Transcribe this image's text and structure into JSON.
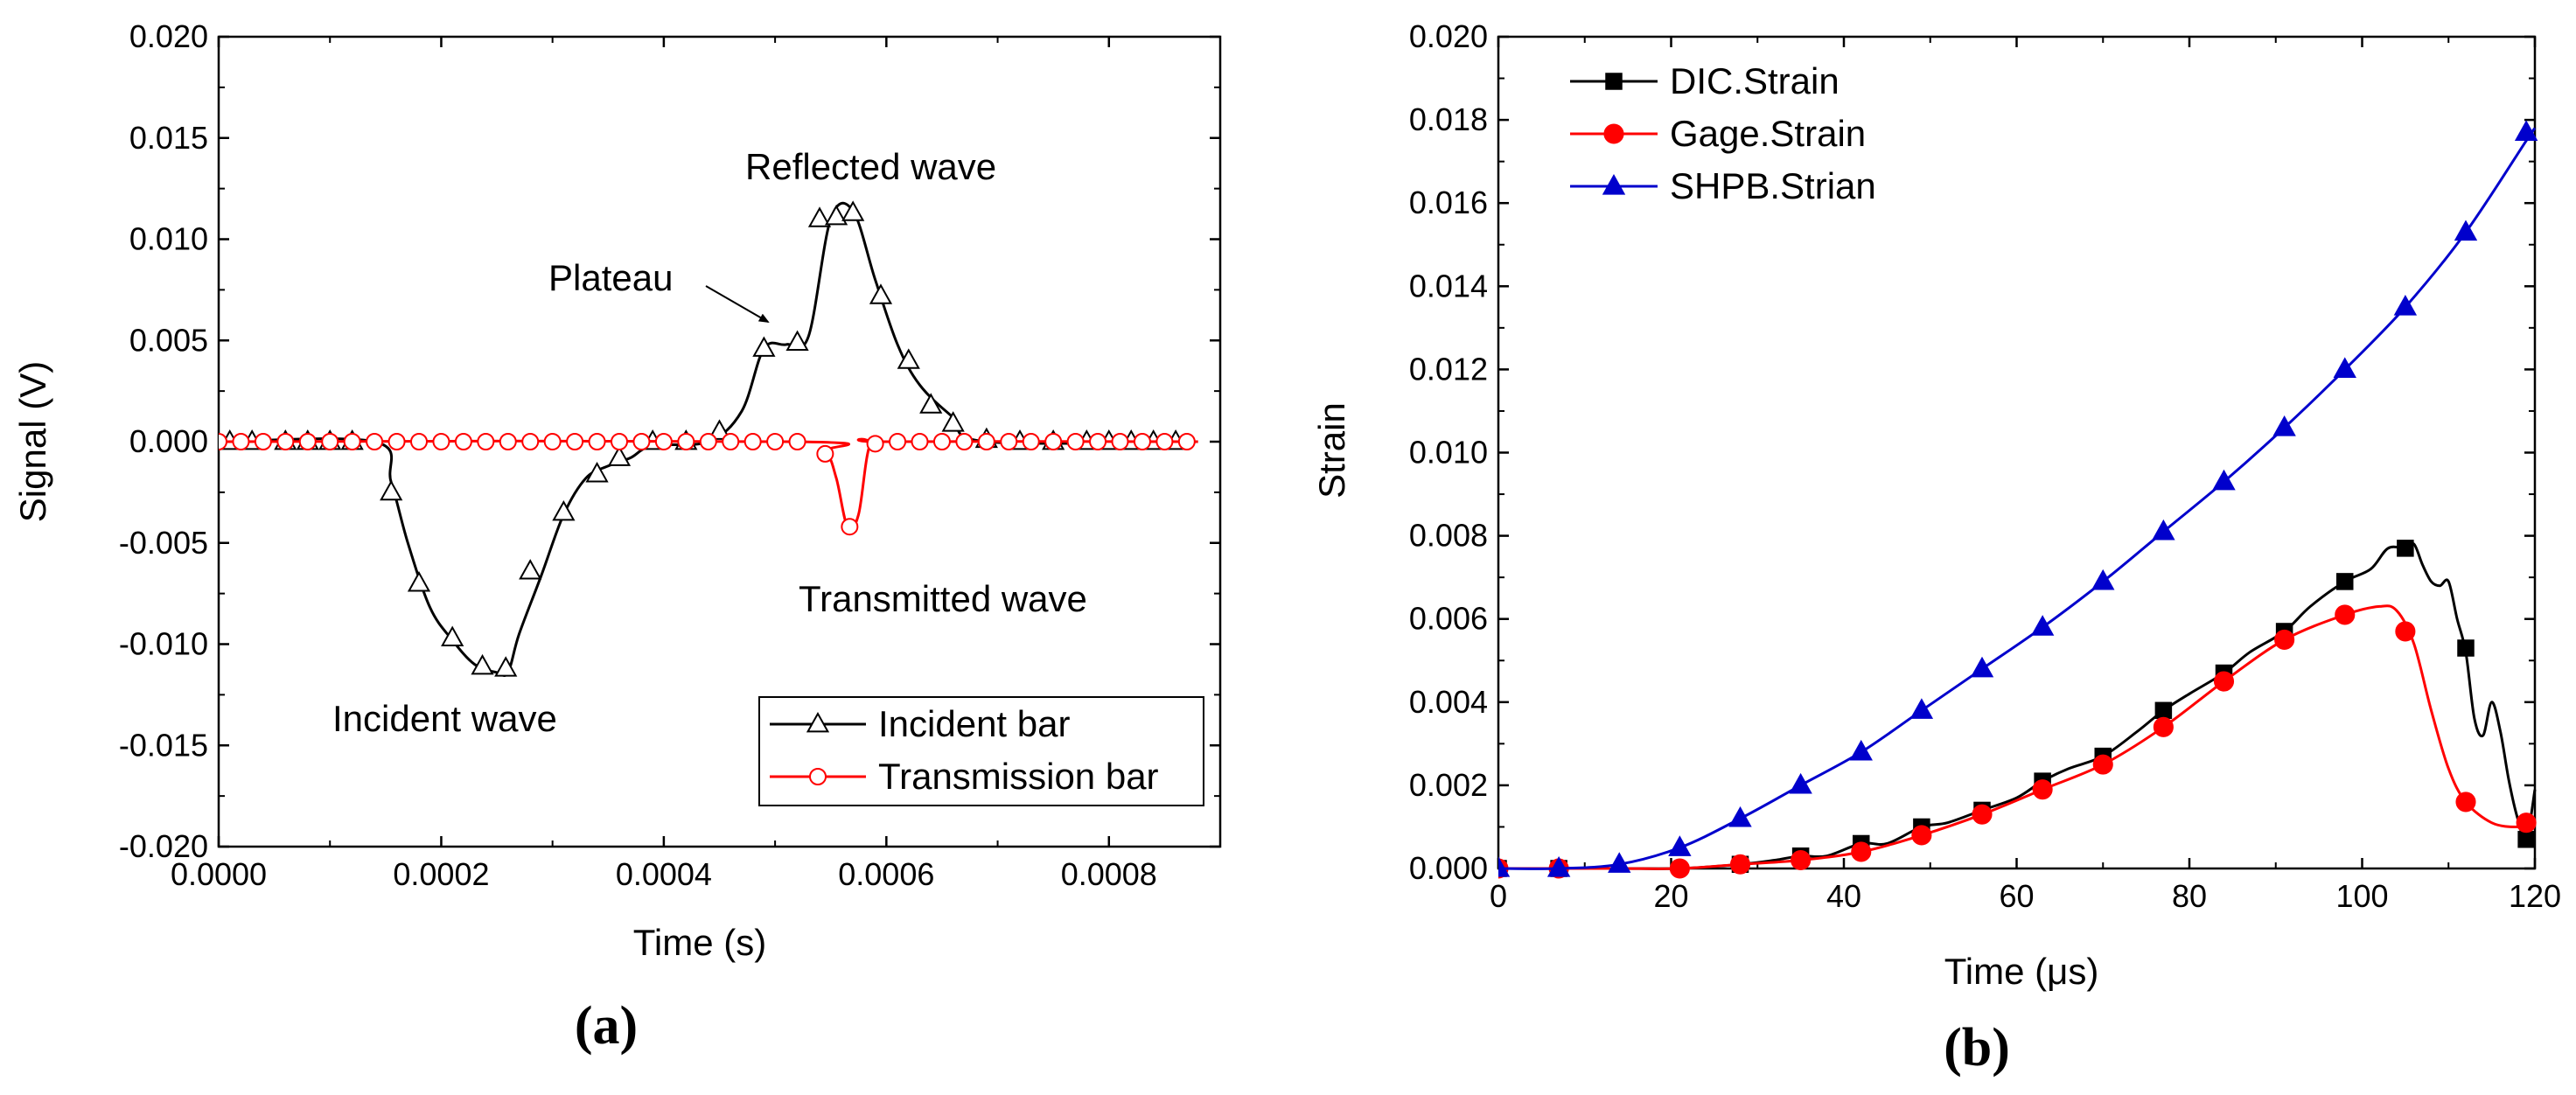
{
  "chart_data": [
    {
      "type": "line",
      "panel_label": "(a)",
      "xlabel": "Time (s)",
      "ylabel": "Signal (V)",
      "xlim": [
        0,
        0.0009
      ],
      "ylim": [
        -0.02,
        0.02
      ],
      "xticks": [
        "0.0000",
        "0.0002",
        "0.0004",
        "0.0006",
        "0.0008"
      ],
      "yticks": [
        "-0.020",
        "-0.015",
        "-0.010",
        "-0.005",
        "0.000",
        "0.005",
        "0.010",
        "0.015",
        "0.020"
      ],
      "grid": false,
      "legend_position": "bottom-right",
      "annotations": {
        "reflected": "Reflected wave",
        "plateau": "Plateau",
        "transmitted": "Transmitted wave",
        "incident": "Incident wave"
      },
      "series": [
        {
          "name": "Incident bar",
          "color": "#000000",
          "marker": "open-triangle",
          "line": [
            [
              0,
              0
            ],
            [
              0.00014,
              0
            ],
            [
              0.000155,
              -0.002
            ],
            [
              0.00017,
              -0.005
            ],
            [
              0.00019,
              -0.0082
            ],
            [
              0.00021,
              -0.0098
            ],
            [
              0.00023,
              -0.011
            ],
            [
              0.00025,
              -0.0114
            ],
            [
              0.00026,
              -0.0114
            ],
            [
              0.00027,
              -0.0095
            ],
            [
              0.00029,
              -0.0066
            ],
            [
              0.00031,
              -0.0036
            ],
            [
              0.00033,
              -0.0018
            ],
            [
              0.00035,
              -0.0012
            ],
            [
              0.00037,
              -0.0008
            ],
            [
              0.00039,
              -0.0002
            ],
            [
              0.00044,
              0
            ],
            [
              0.00047,
              0.0015
            ],
            [
              0.00049,
              0.0046
            ],
            [
              0.00051,
              0.0048
            ],
            [
              0.00053,
              0.0052
            ],
            [
              0.00055,
              0.011
            ],
            [
              0.00057,
              0.0114
            ],
            [
              0.00059,
              0.008
            ],
            [
              0.00061,
              0.0048
            ],
            [
              0.00063,
              0.0028
            ],
            [
              0.00066,
              0.0012
            ],
            [
              0.00069,
              0
            ],
            [
              0.00088,
              0
            ]
          ],
          "markers": [
            [
              1e-05,
              0
            ],
            [
              3e-05,
              0
            ],
            [
              6e-05,
              0
            ],
            [
              8e-05,
              0
            ],
            [
              0.0001,
              0
            ],
            [
              0.00012,
              0
            ],
            [
              0.000155,
              -0.0025
            ],
            [
              0.00018,
              -0.007
            ],
            [
              0.00021,
              -0.0097
            ],
            [
              0.000237,
              -0.0111
            ],
            [
              0.000258,
              -0.0112
            ],
            [
              0.00028,
              -0.0064
            ],
            [
              0.00031,
              -0.0035
            ],
            [
              0.00034,
              -0.0016
            ],
            [
              0.00036,
              -0.0008
            ],
            [
              0.00039,
              0
            ],
            [
              0.00042,
              0
            ],
            [
              0.00045,
              0.0005
            ],
            [
              0.00049,
              0.0046
            ],
            [
              0.00052,
              0.0049
            ],
            [
              0.00054,
              0.011
            ],
            [
              0.000555,
              0.0111
            ],
            [
              0.00057,
              0.0113
            ],
            [
              0.000595,
              0.0072
            ],
            [
              0.00062,
              0.004
            ],
            [
              0.00064,
              0.0018
            ],
            [
              0.00066,
              0.0009
            ],
            [
              0.00069,
              0.0001
            ],
            [
              0.00072,
              0
            ],
            [
              0.00075,
              0
            ],
            [
              0.00078,
              0
            ],
            [
              0.0008,
              0
            ],
            [
              0.00082,
              0
            ],
            [
              0.00084,
              0
            ],
            [
              0.00086,
              0
            ]
          ]
        },
        {
          "name": "Transmission bar",
          "color": "#ff0000",
          "marker": "open-circle",
          "line": [
            [
              0,
              0
            ],
            [
              0.00052,
              0
            ],
            [
              0.000545,
              -0.0005
            ],
            [
              0.000555,
              -0.0018
            ],
            [
              0.000565,
              -0.0042
            ],
            [
              0.000575,
              -0.0036
            ],
            [
              0.000585,
              -0.0002
            ],
            [
              0.0006,
              0
            ],
            [
              0.00088,
              0
            ]
          ],
          "markers": [
            [
              0.0,
              0
            ],
            [
              2e-05,
              0
            ],
            [
              4e-05,
              0
            ],
            [
              6e-05,
              0
            ],
            [
              8e-05,
              0
            ],
            [
              0.0001,
              0
            ],
            [
              0.00012,
              0
            ],
            [
              0.00014,
              0
            ],
            [
              0.00016,
              0
            ],
            [
              0.00018,
              0
            ],
            [
              0.0002,
              0
            ],
            [
              0.00022,
              0
            ],
            [
              0.00024,
              0
            ],
            [
              0.00026,
              0
            ],
            [
              0.00028,
              0
            ],
            [
              0.0003,
              0
            ],
            [
              0.00032,
              0
            ],
            [
              0.00034,
              0
            ],
            [
              0.00036,
              0
            ],
            [
              0.00038,
              0
            ],
            [
              0.0004,
              0
            ],
            [
              0.00042,
              0
            ],
            [
              0.00044,
              0
            ],
            [
              0.00046,
              0
            ],
            [
              0.00048,
              0
            ],
            [
              0.0005,
              0
            ],
            [
              0.00052,
              0
            ],
            [
              0.000545,
              -0.0006
            ],
            [
              0.000567,
              -0.0042
            ],
            [
              0.00059,
              -0.0001
            ],
            [
              0.00061,
              0
            ],
            [
              0.00063,
              0
            ],
            [
              0.00065,
              0
            ],
            [
              0.00067,
              0
            ],
            [
              0.00069,
              0
            ],
            [
              0.00071,
              0
            ],
            [
              0.00073,
              0
            ],
            [
              0.00075,
              0
            ],
            [
              0.00077,
              0
            ],
            [
              0.00079,
              0
            ],
            [
              0.00081,
              0
            ],
            [
              0.00083,
              0
            ],
            [
              0.00085,
              0
            ],
            [
              0.00087,
              0
            ]
          ]
        }
      ]
    },
    {
      "type": "line",
      "panel_label": "(b)",
      "xlabel": "Time (μs)",
      "ylabel": "Strain",
      "xlim": [
        0,
        120
      ],
      "ylim": [
        0,
        0.02
      ],
      "xticks": [
        "0",
        "20",
        "40",
        "60",
        "80",
        "100",
        "120"
      ],
      "yticks": [
        "0.000",
        "0.002",
        "0.004",
        "0.006",
        "0.008",
        "0.010",
        "0.012",
        "0.014",
        "0.016",
        "0.018",
        "0.020"
      ],
      "grid": false,
      "legend_position": "top-left",
      "series": [
        {
          "name": "DIC.Strain",
          "color": "#000000",
          "marker": "filled-square",
          "line": [
            [
              0,
              0
            ],
            [
              7,
              0
            ],
            [
              14,
              0
            ],
            [
              21,
              0
            ],
            [
              28,
              0.0001
            ],
            [
              32,
              0.0002
            ],
            [
              35,
              0.0003
            ],
            [
              38,
              0.0003
            ],
            [
              42,
              0.0006
            ],
            [
              45,
              0.0006
            ],
            [
              49,
              0.001
            ],
            [
              52,
              0.0011
            ],
            [
              56,
              0.0014
            ],
            [
              60,
              0.0017
            ],
            [
              63,
              0.0021
            ],
            [
              66,
              0.0024
            ],
            [
              70,
              0.0027
            ],
            [
              74,
              0.0033
            ],
            [
              77,
              0.0038
            ],
            [
              80,
              0.0042
            ],
            [
              84,
              0.0047
            ],
            [
              87,
              0.0052
            ],
            [
              91,
              0.0057
            ],
            [
              94,
              0.0063
            ],
            [
              98,
              0.0069
            ],
            [
              101,
              0.0072
            ],
            [
              103,
              0.0077
            ],
            [
              105,
              0.0077
            ],
            [
              106,
              0.0078
            ],
            [
              107,
              0.0073
            ],
            [
              108,
              0.0069
            ],
            [
              109,
              0.0068
            ],
            [
              110,
              0.0069
            ],
            [
              111,
              0.006
            ],
            [
              112,
              0.0052
            ],
            [
              113,
              0.0036
            ],
            [
              114,
              0.0032
            ],
            [
              115,
              0.004
            ],
            [
              116,
              0.0033
            ],
            [
              117,
              0.0021
            ],
            [
              118,
              0.0012
            ],
            [
              119,
              0.0007
            ],
            [
              120,
              0.0019
            ]
          ],
          "markers": [
            [
              0,
              0
            ],
            [
              7,
              0
            ],
            [
              28,
              0.0001
            ],
            [
              35,
              0.0003
            ],
            [
              42,
              0.0006
            ],
            [
              49,
              0.001
            ],
            [
              56,
              0.0014
            ],
            [
              63,
              0.0021
            ],
            [
              70,
              0.0027
            ],
            [
              77,
              0.0038
            ],
            [
              84,
              0.0047
            ],
            [
              91,
              0.0057
            ],
            [
              98,
              0.0069
            ],
            [
              105,
              0.0077
            ],
            [
              112,
              0.0053
            ],
            [
              119,
              0.0007
            ]
          ]
        },
        {
          "name": "Gage.Strain",
          "color": "#ff0000",
          "marker": "filled-circle",
          "line": [
            [
              0,
              0
            ],
            [
              7,
              0
            ],
            [
              14,
              0
            ],
            [
              21,
              0
            ],
            [
              28,
              0.0001
            ],
            [
              35,
              0.0002
            ],
            [
              42,
              0.0004
            ],
            [
              49,
              0.0008
            ],
            [
              56,
              0.0013
            ],
            [
              63,
              0.0019
            ],
            [
              70,
              0.0025
            ],
            [
              77,
              0.0034
            ],
            [
              84,
              0.0045
            ],
            [
              91,
              0.0055
            ],
            [
              98,
              0.0061
            ],
            [
              102,
              0.0063
            ],
            [
              104,
              0.0062
            ],
            [
              106,
              0.0054
            ],
            [
              108,
              0.0038
            ],
            [
              110,
              0.0024
            ],
            [
              112,
              0.0016
            ],
            [
              115,
              0.0011
            ],
            [
              118,
              0.001
            ],
            [
              120,
              0.0011
            ]
          ],
          "markers": [
            [
              0,
              0
            ],
            [
              7,
              0
            ],
            [
              21,
              0
            ],
            [
              28,
              0.0001
            ],
            [
              35,
              0.0002
            ],
            [
              42,
              0.0004
            ],
            [
              49,
              0.0008
            ],
            [
              56,
              0.0013
            ],
            [
              63,
              0.0019
            ],
            [
              70,
              0.0025
            ],
            [
              77,
              0.0034
            ],
            [
              84,
              0.0045
            ],
            [
              91,
              0.0055
            ],
            [
              98,
              0.0061
            ],
            [
              105,
              0.0057
            ],
            [
              112,
              0.0016
            ],
            [
              119,
              0.0011
            ]
          ]
        },
        {
          "name": "SHPB.Strian",
          "color": "#0000cc",
          "marker": "filled-triangle",
          "line": [
            [
              0,
              0
            ],
            [
              7,
              0
            ],
            [
              14,
              0.0001
            ],
            [
              21,
              0.0005
            ],
            [
              28,
              0.0012
            ],
            [
              35,
              0.002
            ],
            [
              42,
              0.0028
            ],
            [
              49,
              0.0038
            ],
            [
              56,
              0.0048
            ],
            [
              63,
              0.0058
            ],
            [
              70,
              0.0069
            ],
            [
              77,
              0.0081
            ],
            [
              84,
              0.0093
            ],
            [
              91,
              0.0106
            ],
            [
              98,
              0.012
            ],
            [
              105,
              0.0135
            ],
            [
              112,
              0.0153
            ],
            [
              119,
              0.0175
            ],
            [
              120,
              0.0178
            ]
          ],
          "markers": [
            [
              0,
              0
            ],
            [
              7,
              0
            ],
            [
              14,
              0.0001
            ],
            [
              21,
              0.0005
            ],
            [
              28,
              0.0012
            ],
            [
              35,
              0.002
            ],
            [
              42,
              0.0028
            ],
            [
              49,
              0.0038
            ],
            [
              56,
              0.0048
            ],
            [
              63,
              0.0058
            ],
            [
              70,
              0.0069
            ],
            [
              77,
              0.0081
            ],
            [
              84,
              0.0093
            ],
            [
              91,
              0.0106
            ],
            [
              98,
              0.012
            ],
            [
              105,
              0.0135
            ],
            [
              112,
              0.0153
            ],
            [
              119,
              0.0177
            ]
          ]
        }
      ]
    }
  ]
}
